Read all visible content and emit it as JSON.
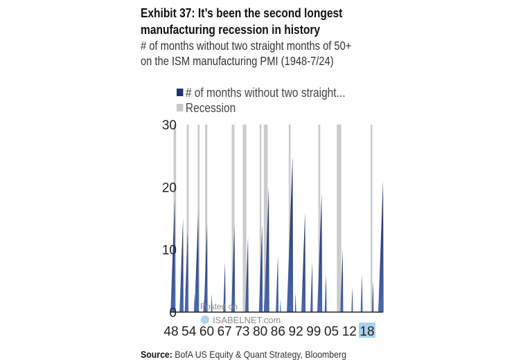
{
  "title": "Exhibit 37: It’s been the second longest manufacturing recession in history",
  "title_lines": [
    "Exhibit 37: It’s been the second longest",
    "manufacturing recession in history"
  ],
  "subtitle_lines": [
    "# of months without two straight months of 50+",
    "on the ISM manufacturing PMI (1948-7/24)"
  ],
  "source_label": "Source:",
  "source_text": " BofA US Equity & Quant Strategy, Bloomberg",
  "watermark": {
    "line1": "Posted on",
    "line2": "ISABELNET.com"
  },
  "colors": {
    "series": "#1f3470",
    "recession": "#cccccc",
    "highlight": "#a9d2ee"
  },
  "chart_data": {
    "type": "area",
    "title": "Exhibit 37: It’s been the second longest manufacturing recession in history",
    "xlabel": "",
    "ylabel": "",
    "xlim": [
      1948,
      2024.6
    ],
    "ylim": [
      0,
      30
    ],
    "yticks": [
      0,
      10,
      20,
      30
    ],
    "xtick_labels": [
      "48",
      "54",
      "60",
      "67",
      "73",
      "80",
      "86",
      "92",
      "99",
      "05",
      "12",
      "18"
    ],
    "highlighted_xtick": "18",
    "grid": false,
    "legend": {
      "placement": "top-left",
      "entries": [
        "# of months without two straight...",
        "Recession"
      ]
    },
    "series": [
      {
        "name": "# of months without two straight...",
        "peaks": [
          {
            "x": 1949.3,
            "y": 18
          },
          {
            "x": 1952.3,
            "y": 15
          },
          {
            "x": 1954.0,
            "y": 13
          },
          {
            "x": 1956.5,
            "y": 3
          },
          {
            "x": 1957.8,
            "y": 16
          },
          {
            "x": 1959.8,
            "y": 2
          },
          {
            "x": 1961.0,
            "y": 14
          },
          {
            "x": 1962.7,
            "y": 3
          },
          {
            "x": 1967.5,
            "y": 8
          },
          {
            "x": 1970.9,
            "y": 14
          },
          {
            "x": 1975.8,
            "y": 12
          },
          {
            "x": 1980.9,
            "y": 14
          },
          {
            "x": 1981.7,
            "y": 2
          },
          {
            "x": 1983.3,
            "y": 20
          },
          {
            "x": 1986.6,
            "y": 9
          },
          {
            "x": 1987.5,
            "y": 2
          },
          {
            "x": 1991.9,
            "y": 25
          },
          {
            "x": 1993.0,
            "y": 3
          },
          {
            "x": 1996.4,
            "y": 16
          },
          {
            "x": 1999.0,
            "y": 8
          },
          {
            "x": 2002.4,
            "y": 19
          },
          {
            "x": 2004.0,
            "y": 6
          },
          {
            "x": 2010.0,
            "y": 10
          },
          {
            "x": 2013.5,
            "y": 4
          },
          {
            "x": 2017.0,
            "y": 6
          },
          {
            "x": 2021.0,
            "y": 5
          },
          {
            "x": 2024.6,
            "y": 21
          }
        ]
      }
    ],
    "recessions": [
      [
        1948.9,
        1949.8
      ],
      [
        1953.6,
        1954.4
      ],
      [
        1957.6,
        1958.3
      ],
      [
        1960.3,
        1961.1
      ],
      [
        1969.9,
        1970.9
      ],
      [
        1973.9,
        1975.2
      ],
      [
        1980.0,
        1980.5
      ],
      [
        1981.5,
        1982.9
      ],
      [
        1990.5,
        1991.2
      ],
      [
        2001.2,
        2001.9
      ],
      [
        2007.9,
        2009.5
      ],
      [
        2020.1,
        2020.4
      ]
    ]
  }
}
